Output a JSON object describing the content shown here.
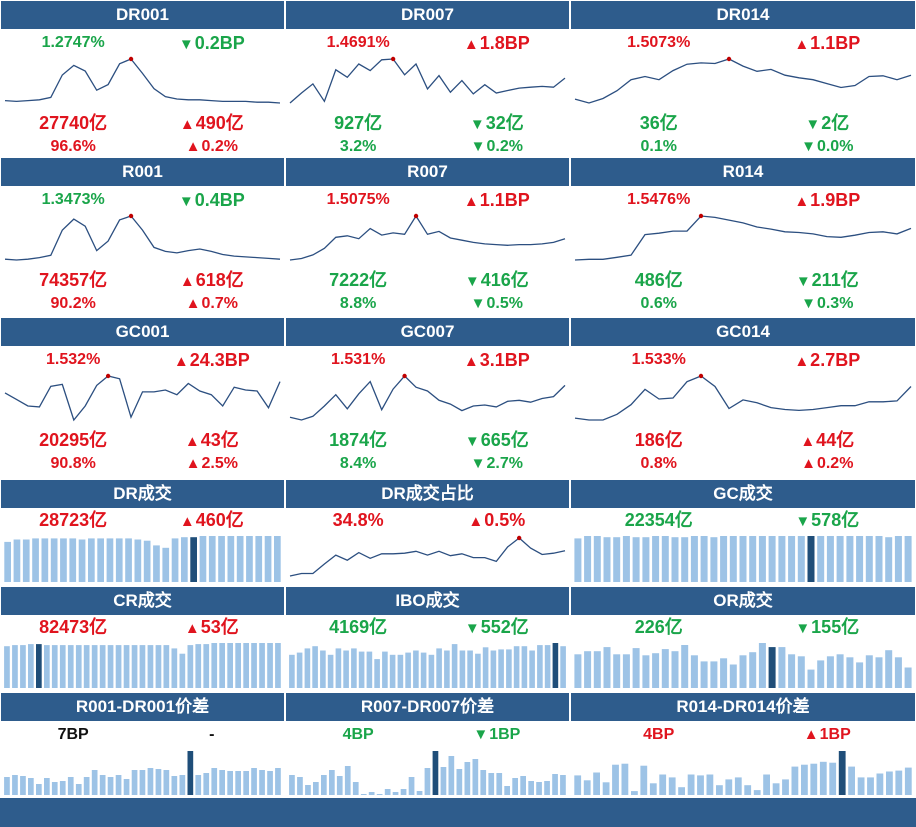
{
  "colors": {
    "header_bg": "#2e5c8c",
    "up": "#e0141e",
    "down": "#1aa54a",
    "line": "#2c4f80",
    "bar": "#9dc3e6",
    "bar_highlight": "#1f4e79"
  },
  "rate_panels": [
    {
      "title": "DR001",
      "rate": "1.2747%",
      "rate_dir": "down",
      "bp": "0.2BP",
      "bp_dir": "down",
      "bp_icon": "down-triangle-icon",
      "volume": "27740亿",
      "vol_dir": "up",
      "vol_change": "490亿",
      "vol_change_dir": "up",
      "share": "96.6%",
      "share_dir": "up",
      "share_change": "0.2%",
      "share_change_dir": "up",
      "trend": [
        9.1,
        9.0,
        9.1,
        9.2,
        9.5,
        12.3,
        13.5,
        12.8,
        10.4,
        11.1,
        13.7,
        14.3,
        12.5,
        10.6,
        9.6,
        9.3,
        9.2,
        9.2,
        9.1,
        9.0,
        9.0,
        9.0,
        8.9,
        8.9,
        8.8
      ]
    },
    {
      "title": "DR007",
      "rate": "1.4691%",
      "rate_dir": "up",
      "bp": "1.8BP",
      "bp_dir": "up",
      "bp_icon": "up-triangle-icon",
      "volume": "927亿",
      "vol_dir": "down",
      "vol_change": "32亿",
      "vol_change_dir": "down",
      "share": "3.2%",
      "share_dir": "down",
      "share_change": "0.2%",
      "share_change_dir": "down",
      "trend": [
        7.3,
        8.5,
        9.6,
        7.5,
        11.3,
        10.4,
        12.0,
        11.2,
        12.5,
        12.6,
        10.7,
        12.0,
        9.0,
        10.6,
        8.6,
        10.0,
        8.4,
        9.5,
        8.5,
        8.8,
        9.1,
        9.2,
        9.3,
        9.2,
        10.3
      ]
    },
    {
      "title": "DR014",
      "rate": "1.5073%",
      "rate_dir": "up",
      "bp": "1.1BP",
      "bp_dir": "up",
      "bp_icon": "up-triangle-icon",
      "volume": "36亿",
      "vol_dir": "down",
      "vol_change": "2亿",
      "vol_change_dir": "down",
      "share": "0.1%",
      "share_dir": "down",
      "share_change": "0.0%",
      "share_change_dir": "down",
      "trend": [
        8.0,
        7.4,
        8.1,
        9.3,
        11.0,
        11.5,
        11.0,
        12.4,
        13.4,
        13.6,
        13.5,
        14.2,
        13.1,
        12.3,
        12.6,
        11.7,
        11.3,
        11.0,
        10.4,
        9.8,
        10.1,
        11.5,
        11.6,
        11.0,
        11.7
      ]
    },
    {
      "title": "R001",
      "rate": "1.3473%",
      "rate_dir": "down",
      "bp": "0.4BP",
      "bp_dir": "down",
      "bp_icon": "down-triangle-icon",
      "volume": "74357亿",
      "vol_dir": "up",
      "vol_change": "618亿",
      "vol_change_dir": "up",
      "share": "90.2%",
      "share_dir": "up",
      "share_change": "0.7%",
      "share_change_dir": "up",
      "trend": [
        9.1,
        9.0,
        9.1,
        9.3,
        9.6,
        12.8,
        14.2,
        13.3,
        10.2,
        11.4,
        14.1,
        14.6,
        12.8,
        10.6,
        10.1,
        9.9,
        10.2,
        10.4,
        10.1,
        9.7,
        9.5,
        9.4,
        9.3,
        9.2,
        9.1
      ]
    },
    {
      "title": "R007",
      "rate": "1.5075%",
      "rate_dir": "up",
      "bp": "1.1BP",
      "bp_dir": "up",
      "bp_icon": "up-triangle-icon",
      "volume": "7222亿",
      "vol_dir": "down",
      "vol_change": "416亿",
      "vol_change_dir": "down",
      "share": "8.8%",
      "share_dir": "down",
      "share_change": "0.5%",
      "share_change_dir": "down",
      "trend": [
        8.3,
        8.5,
        9.0,
        9.9,
        11.4,
        11.6,
        11.2,
        12.6,
        11.7,
        12.0,
        11.8,
        14.3,
        11.8,
        12.2,
        11.3,
        11.0,
        10.7,
        10.5,
        10.4,
        10.3,
        10.4,
        10.4,
        10.5,
        10.7,
        11.2
      ]
    },
    {
      "title": "R014",
      "rate": "1.5476%",
      "rate_dir": "up",
      "bp": "1.9BP",
      "bp_dir": "up",
      "bp_icon": "up-triangle-icon",
      "volume": "486亿",
      "vol_dir": "down",
      "vol_change": "211亿",
      "vol_change_dir": "down",
      "share": "0.6%",
      "share_dir": "down",
      "share_change": "0.3%",
      "share_change_dir": "down",
      "trend": [
        8.2,
        8.3,
        8.3,
        8.6,
        8.9,
        11.9,
        12.1,
        12.4,
        12.4,
        14.6,
        14.4,
        14.0,
        13.6,
        13.0,
        12.7,
        12.3,
        12.2,
        12.0,
        11.6,
        11.5,
        11.8,
        12.2,
        12.3,
        12.0,
        12.8
      ]
    },
    {
      "title": "GC001",
      "rate": "1.532%",
      "rate_dir": "up",
      "bp": "24.3BP",
      "bp_dir": "up",
      "bp_icon": "up-triangle-icon",
      "volume": "20295亿",
      "vol_dir": "up",
      "vol_change": "43亿",
      "vol_change_dir": "up",
      "share": "90.8%",
      "share_dir": "up",
      "share_change": "2.5%",
      "share_change_dir": "up",
      "trend": [
        11.2,
        10.5,
        9.8,
        9.7,
        11.9,
        12.1,
        8.3,
        9.8,
        12.0,
        13.0,
        12.7,
        8.6,
        11.3,
        11.3,
        11.5,
        11.0,
        12.2,
        11.4,
        11.0,
        9.8,
        11.8,
        11.5,
        11.4,
        9.6,
        12.4
      ]
    },
    {
      "title": "GC007",
      "rate": "1.531%",
      "rate_dir": "up",
      "bp": "3.1BP",
      "bp_dir": "up",
      "bp_icon": "up-triangle-icon",
      "volume": "1874亿",
      "vol_dir": "down",
      "vol_change": "665亿",
      "vol_change_dir": "down",
      "share": "8.4%",
      "share_dir": "down",
      "share_change": "2.7%",
      "share_change_dir": "down",
      "trend": [
        8.9,
        8.6,
        9.0,
        10.1,
        11.3,
        9.8,
        11.4,
        12.7,
        9.7,
        11.9,
        13.3,
        12.1,
        11.7,
        10.7,
        10.3,
        9.6,
        10.1,
        10.2,
        10.0,
        10.6,
        10.7,
        10.5,
        10.9,
        11.1,
        12.3
      ]
    },
    {
      "title": "GC014",
      "rate": "1.533%",
      "rate_dir": "up",
      "bp": "2.7BP",
      "bp_dir": "up",
      "bp_icon": "up-triangle-icon",
      "volume": "186亿",
      "vol_dir": "up",
      "vol_change": "44亿",
      "vol_change_dir": "up",
      "share": "0.8%",
      "share_dir": "up",
      "share_change": "0.2%",
      "share_change_dir": "up",
      "trend": [
        9.3,
        9.1,
        9.1,
        9.7,
        10.7,
        12.3,
        11.3,
        11.4,
        13.1,
        13.7,
        12.6,
        10.3,
        11.2,
        10.9,
        10.4,
        10.2,
        10.1,
        10.2,
        10.4,
        10.6,
        10.6,
        11.0,
        11.0,
        11.1,
        12.6
      ]
    }
  ],
  "volume_panels": [
    {
      "title": "DR成交",
      "value": "28723亿",
      "value_dir": "up",
      "change": "460亿",
      "change_dir": "up",
      "kind": "bars",
      "bars": [
        34,
        36,
        36,
        37,
        37,
        37,
        37,
        37,
        36,
        37,
        37,
        37,
        37,
        37,
        36,
        35,
        31,
        29,
        37,
        38,
        38,
        39,
        39,
        39,
        39,
        39,
        39,
        39,
        39,
        39
      ],
      "highlight": 20
    },
    {
      "title": "DR成交占比",
      "value": "34.8%",
      "value_dir": "up",
      "change": "0.5%",
      "change_dir": "up",
      "kind": "line",
      "trend": [
        8.3,
        8.7,
        8.7,
        10.2,
        11.6,
        10.8,
        12.0,
        11.1,
        11.8,
        11.8,
        11.9,
        12.2,
        11.6,
        12.2,
        11.5,
        11.8,
        11.2,
        11.2,
        10.6,
        12.9,
        14.3,
        12.7,
        11.7,
        11.9,
        12.3
      ]
    },
    {
      "title": "GC成交",
      "value": "22354亿",
      "value_dir": "down",
      "change": "578亿",
      "change_dir": "down",
      "kind": "bars",
      "bars": [
        36,
        38,
        38,
        37,
        37,
        38,
        37,
        37,
        38,
        38,
        37,
        37,
        38,
        38,
        37,
        38,
        38,
        38,
        38,
        38,
        38,
        38,
        38,
        38,
        38,
        38,
        38,
        38,
        38,
        38,
        38,
        38,
        37,
        38,
        38
      ],
      "highlight": 24
    },
    {
      "title": "CR成交",
      "value": "82473亿",
      "value_dir": "up",
      "change": "53亿",
      "change_dir": "up",
      "kind": "bars",
      "bars": [
        39,
        40,
        40,
        41,
        41,
        40,
        40,
        40,
        40,
        40,
        40,
        40,
        40,
        40,
        40,
        40,
        40,
        40,
        40,
        40,
        40,
        37,
        32,
        40,
        41,
        41,
        42,
        42,
        42,
        42,
        42,
        42,
        42,
        42,
        42
      ],
      "highlight": 4
    },
    {
      "title": "IBO成交",
      "value": "4169亿",
      "value_dir": "down",
      "change": "552亿",
      "change_dir": "down",
      "kind": "bars",
      "bars": [
        31,
        33,
        37,
        39,
        35,
        31,
        37,
        35,
        37,
        34,
        34,
        27,
        34,
        31,
        31,
        33,
        35,
        33,
        31,
        37,
        35,
        41,
        35,
        35,
        32,
        38,
        35,
        36,
        36,
        39,
        39,
        35,
        40,
        40,
        42,
        39
      ],
      "highlight": 34
    },
    {
      "title": "OR成交",
      "value": "226亿",
      "value_dir": "down",
      "change": "155亿",
      "change_dir": "down",
      "kind": "bars",
      "bars": [
        33,
        36,
        36,
        40,
        33,
        33,
        39,
        32,
        34,
        38,
        36,
        42,
        32,
        26,
        26,
        29,
        23,
        32,
        35,
        44,
        40,
        40,
        33,
        31,
        18,
        27,
        31,
        33,
        30,
        25,
        32,
        30,
        37,
        30,
        20
      ],
      "highlight": 20
    }
  ],
  "spread_panels": [
    {
      "title": "R001-DR001价差",
      "value": "7BP",
      "value_dir": "neutral",
      "change": "-",
      "change_dir": "neutral",
      "change_icon": "",
      "bars": [
        18,
        20,
        19,
        17,
        11,
        17,
        13,
        14,
        18,
        11,
        18,
        25,
        20,
        18,
        20,
        16,
        25,
        25,
        27,
        26,
        25,
        19,
        20,
        44,
        20,
        22,
        27,
        25,
        24,
        24,
        24,
        27,
        25,
        24,
        27
      ],
      "highlight": 23
    },
    {
      "title": "R007-DR007价差",
      "value": "4BP",
      "value_dir": "down",
      "change": "1BP",
      "change_dir": "down",
      "change_icon": "down-triangle-icon",
      "bars": [
        20,
        18,
        10,
        13,
        20,
        25,
        19,
        29,
        13,
        1,
        3,
        1,
        6,
        3,
        6,
        18,
        4,
        27,
        44,
        28,
        39,
        26,
        33,
        36,
        25,
        22,
        22,
        9,
        17,
        19,
        14,
        13,
        14,
        21,
        20
      ],
      "highlight": 18
    },
    {
      "title": "R014-DR014价差",
      "value": "4BP",
      "value_dir": "up",
      "change": "1BP",
      "change_dir": "up",
      "change_icon": "up-triangle-icon",
      "bars": [
        20,
        15,
        23,
        13,
        31,
        32,
        4,
        30,
        12,
        21,
        18,
        8,
        21,
        20,
        21,
        10,
        16,
        18,
        10,
        5,
        21,
        12,
        16,
        29,
        31,
        32,
        34,
        33,
        45,
        29,
        18,
        18,
        22,
        24,
        25,
        28
      ],
      "highlight": 28
    }
  ]
}
